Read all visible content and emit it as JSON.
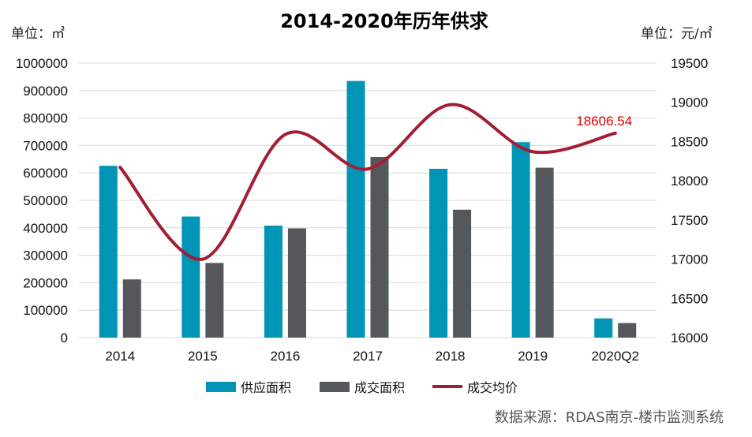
{
  "colors": {
    "supply": "#0095b6",
    "deal": "#55585a",
    "price": "#a31d35",
    "grid": "#d9d9d9",
    "annotation": "#e00000"
  },
  "units": {
    "left": "单位：㎡",
    "right": "单位：元/㎡"
  },
  "source": "数据来源：RDAS南京-楼市监测系统",
  "chart_data": {
    "type": "bar",
    "title": "2014-2020年历年供求",
    "categories": [
      "2014",
      "2015",
      "2016",
      "2017",
      "2018",
      "2019",
      "2020Q2"
    ],
    "series": [
      {
        "name": "供应面积",
        "type": "bar",
        "axis": "left",
        "values": [
          626000,
          441000,
          408000,
          935000,
          615000,
          712000,
          70000
        ]
      },
      {
        "name": "成交面积",
        "type": "bar",
        "axis": "left",
        "values": [
          212000,
          272000,
          398000,
          658000,
          466000,
          619000,
          53000
        ]
      },
      {
        "name": "成交均价",
        "type": "line",
        "axis": "right",
        "smooth": true,
        "values": [
          18170,
          17000,
          18590,
          18150,
          18970,
          18370,
          18606.54
        ]
      }
    ],
    "ylim_left": [
      0,
      1000000
    ],
    "yticks_left": [
      "0",
      "100000",
      "200000",
      "300000",
      "400000",
      "500000",
      "600000",
      "700000",
      "800000",
      "900000",
      "1000000"
    ],
    "ylim_right": [
      16000,
      19500
    ],
    "yticks_right": [
      "16000",
      "16500",
      "17000",
      "17500",
      "18000",
      "18500",
      "19000",
      "19500"
    ],
    "annotation": {
      "series": "成交均价",
      "category": "2020Q2",
      "label": "18606.54"
    },
    "grid": true,
    "legend_position": "bottom"
  }
}
